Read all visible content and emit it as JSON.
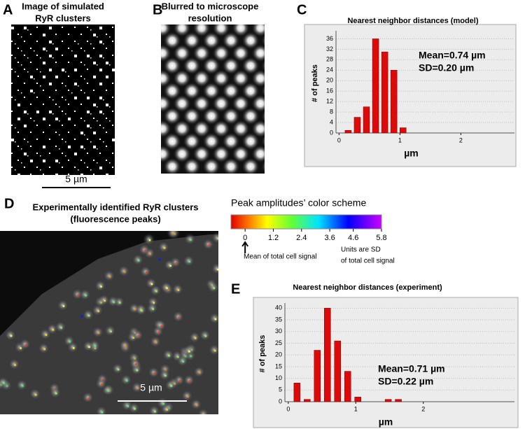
{
  "panels": [
    {
      "label": "A",
      "title": [
        "Image of simulated",
        "RyR clusters"
      ],
      "scale_bar": "5 µm"
    },
    {
      "label": "B",
      "title": [
        "Blurred to microscope",
        "resolution"
      ]
    },
    {
      "label": "C"
    },
    {
      "label": "D",
      "title": [
        "Experimentally identified RyR clusters",
        "(fluorescence peaks)"
      ],
      "scale_bar": "5 µm"
    },
    {
      "label": "E"
    }
  ],
  "colorbar": {
    "title": "Peak amplitudes’ color scheme",
    "lim": [
      -0.6,
      5.8
    ],
    "ticks": [
      0,
      1.2,
      2.4,
      3.6,
      4.6,
      5.8
    ],
    "note_left": "Mean of total cell signal",
    "note_right": [
      "Units are SD",
      "of total cell signal"
    ]
  },
  "chart_data": [
    {
      "type": "bar",
      "title": "Nearest neighbor distances (model)",
      "xlabel": "µm",
      "ylabel": "# of peaks",
      "x": [
        0.15,
        0.3,
        0.45,
        0.6,
        0.75,
        0.9,
        1.05
      ],
      "values": [
        1,
        6,
        10,
        36,
        31,
        24,
        2
      ],
      "color": "#dd0a0a",
      "xlim": [
        -0.05,
        2.88
      ],
      "xticks": [
        0,
        1,
        2
      ],
      "ylim": [
        0,
        38
      ],
      "yticks": [
        0,
        4,
        8,
        12,
        16,
        20,
        24,
        28,
        32,
        36
      ],
      "grid": true,
      "annotations": [
        "Mean=0.74 µm",
        "SD=0.20 µm"
      ]
    },
    {
      "type": "bar",
      "title": "Nearest neighbor distances (experiment)",
      "xlabel": "µm",
      "ylabel": "# of peaks",
      "x": [
        0.13,
        0.28,
        0.43,
        0.58,
        0.73,
        0.88,
        1.03,
        1.48,
        1.63
      ],
      "values": [
        8,
        1,
        22,
        40,
        26,
        13,
        2,
        1,
        1
      ],
      "color": "#dd0a0a",
      "xlim": [
        -0.05,
        3.35
      ],
      "xticks": [
        0,
        1,
        2
      ],
      "ylim": [
        0,
        41
      ],
      "yticks": [
        0,
        5,
        10,
        15,
        20,
        25,
        30,
        35,
        40
      ],
      "grid": true,
      "annotations": [
        "Mean=0.71 µm",
        "SD=0.22 µm"
      ]
    }
  ]
}
